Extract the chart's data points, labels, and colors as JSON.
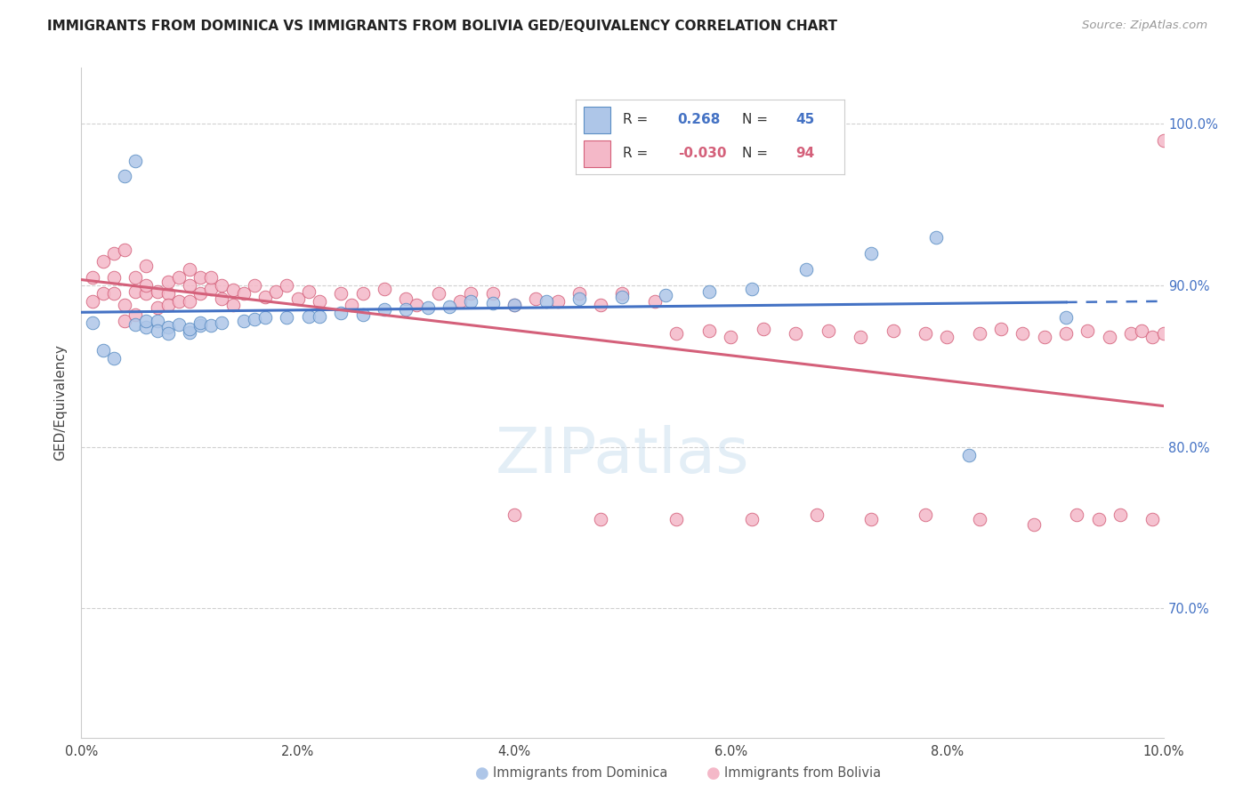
{
  "title": "IMMIGRANTS FROM DOMINICA VS IMMIGRANTS FROM BOLIVIA GED/EQUIVALENCY CORRELATION CHART",
  "source": "Source: ZipAtlas.com",
  "ylabel": "GED/Equivalency",
  "dominica_R": 0.268,
  "dominica_N": 45,
  "bolivia_R": -0.03,
  "bolivia_N": 94,
  "dominica_color": "#aec6e8",
  "bolivia_color": "#f4b8c8",
  "dominica_edge_color": "#5b8ec4",
  "bolivia_edge_color": "#d4607a",
  "dominica_line_color": "#4472c4",
  "bolivia_line_color": "#d4607a",
  "legend_label_1": "Immigrants from Dominica",
  "legend_label_2": "Immigrants from Bolivia",
  "xlim": [
    0.0,
    0.1
  ],
  "ylim": [
    0.62,
    1.035
  ],
  "watermark": "ZIPatlas",
  "dominica_x": [
    0.001,
    0.002,
    0.003,
    0.004,
    0.005,
    0.005,
    0.006,
    0.006,
    0.007,
    0.007,
    0.008,
    0.008,
    0.009,
    0.01,
    0.01,
    0.011,
    0.011,
    0.012,
    0.013,
    0.015,
    0.016,
    0.017,
    0.019,
    0.021,
    0.022,
    0.024,
    0.026,
    0.028,
    0.03,
    0.032,
    0.034,
    0.036,
    0.038,
    0.04,
    0.043,
    0.046,
    0.05,
    0.054,
    0.058,
    0.062,
    0.067,
    0.073,
    0.079,
    0.082,
    0.091
  ],
  "dominica_y": [
    0.877,
    0.86,
    0.855,
    0.968,
    0.977,
    0.876,
    0.874,
    0.878,
    0.878,
    0.872,
    0.874,
    0.87,
    0.876,
    0.871,
    0.873,
    0.875,
    0.877,
    0.875,
    0.877,
    0.878,
    0.879,
    0.88,
    0.88,
    0.881,
    0.881,
    0.883,
    0.882,
    0.885,
    0.885,
    0.886,
    0.887,
    0.89,
    0.889,
    0.888,
    0.89,
    0.892,
    0.893,
    0.894,
    0.896,
    0.898,
    0.91,
    0.92,
    0.93,
    0.795,
    0.88
  ],
  "bolivia_x": [
    0.001,
    0.001,
    0.002,
    0.002,
    0.003,
    0.003,
    0.003,
    0.004,
    0.004,
    0.004,
    0.005,
    0.005,
    0.005,
    0.006,
    0.006,
    0.006,
    0.007,
    0.007,
    0.008,
    0.008,
    0.008,
    0.009,
    0.009,
    0.01,
    0.01,
    0.01,
    0.011,
    0.011,
    0.012,
    0.012,
    0.013,
    0.013,
    0.014,
    0.014,
    0.015,
    0.016,
    0.017,
    0.018,
    0.019,
    0.02,
    0.021,
    0.022,
    0.024,
    0.025,
    0.026,
    0.028,
    0.03,
    0.031,
    0.033,
    0.035,
    0.036,
    0.038,
    0.04,
    0.042,
    0.044,
    0.046,
    0.048,
    0.05,
    0.053,
    0.055,
    0.058,
    0.06,
    0.063,
    0.066,
    0.069,
    0.072,
    0.075,
    0.078,
    0.08,
    0.083,
    0.085,
    0.087,
    0.089,
    0.091,
    0.093,
    0.095,
    0.097,
    0.098,
    0.099,
    0.1,
    0.048,
    0.04,
    0.055,
    0.062,
    0.068,
    0.073,
    0.078,
    0.083,
    0.088,
    0.092,
    0.094,
    0.096,
    0.099,
    0.1
  ],
  "bolivia_y": [
    0.89,
    0.905,
    0.895,
    0.915,
    0.895,
    0.905,
    0.92,
    0.878,
    0.888,
    0.922,
    0.882,
    0.896,
    0.905,
    0.895,
    0.9,
    0.912,
    0.886,
    0.896,
    0.895,
    0.888,
    0.902,
    0.89,
    0.905,
    0.89,
    0.9,
    0.91,
    0.895,
    0.905,
    0.898,
    0.905,
    0.892,
    0.9,
    0.888,
    0.897,
    0.895,
    0.9,
    0.893,
    0.896,
    0.9,
    0.892,
    0.896,
    0.89,
    0.895,
    0.888,
    0.895,
    0.898,
    0.892,
    0.888,
    0.895,
    0.89,
    0.895,
    0.895,
    0.888,
    0.892,
    0.89,
    0.895,
    0.888,
    0.895,
    0.89,
    0.87,
    0.872,
    0.868,
    0.873,
    0.87,
    0.872,
    0.868,
    0.872,
    0.87,
    0.868,
    0.87,
    0.873,
    0.87,
    0.868,
    0.87,
    0.872,
    0.868,
    0.87,
    0.872,
    0.868,
    0.87,
    0.755,
    0.758,
    0.755,
    0.755,
    0.758,
    0.755,
    0.758,
    0.755,
    0.752,
    0.758,
    0.755,
    0.758,
    0.755,
    0.99
  ]
}
